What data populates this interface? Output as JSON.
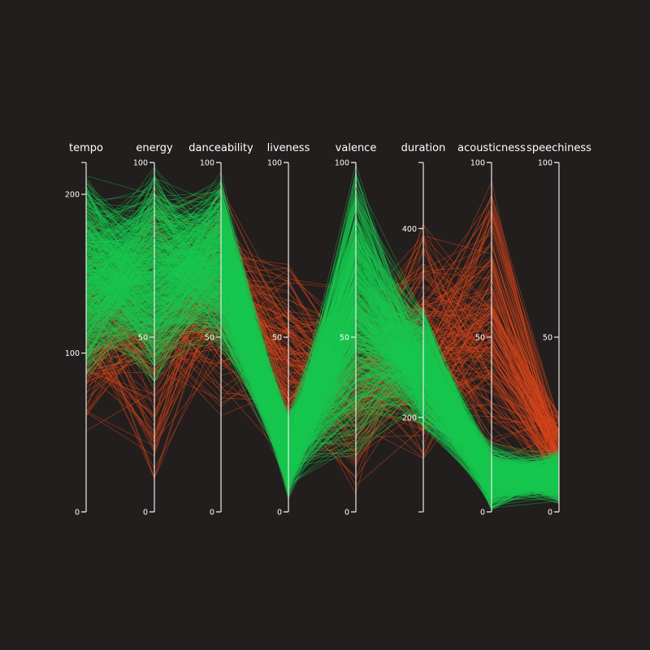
{
  "chart_data": {
    "type": "parallel-coordinates",
    "background": "#221e1d",
    "axis_color": "#e8e8e8",
    "groups": [
      {
        "color": "#19c74f",
        "count": 700
      },
      {
        "color": "#d9461c",
        "count": 170
      }
    ],
    "axes": [
      {
        "key": "tempo",
        "label": "tempo",
        "domain": [
          0,
          220
        ],
        "ticks": [
          {
            "v": 0,
            "label": "0"
          },
          {
            "v": 100,
            "label": "100"
          },
          {
            "v": 200,
            "label": "200"
          }
        ]
      },
      {
        "key": "energy",
        "label": "energy",
        "domain": [
          0,
          100
        ],
        "ticks": [
          {
            "v": 0,
            "label": "0"
          },
          {
            "v": 50,
            "label": "50"
          },
          {
            "v": 100,
            "label": "100"
          }
        ]
      },
      {
        "key": "danceability",
        "label": "danceability",
        "domain": [
          0,
          100
        ],
        "ticks": [
          {
            "v": 0,
            "label": "0"
          },
          {
            "v": 50,
            "label": "50"
          },
          {
            "v": 100,
            "label": "100"
          }
        ]
      },
      {
        "key": "liveness",
        "label": "liveness",
        "domain": [
          0,
          100
        ],
        "ticks": [
          {
            "v": 0,
            "label": "0"
          },
          {
            "v": 50,
            "label": "50"
          },
          {
            "v": 100,
            "label": "100"
          }
        ]
      },
      {
        "key": "valence",
        "label": "valence",
        "domain": [
          0,
          100
        ],
        "ticks": [
          {
            "v": 0,
            "label": "0"
          },
          {
            "v": 50,
            "label": "50"
          },
          {
            "v": 100,
            "label": "100"
          }
        ]
      },
      {
        "key": "duration",
        "label": "duration",
        "domain": [
          100,
          470
        ],
        "ticks": [
          {
            "v": 200,
            "label": "200"
          },
          {
            "v": 400,
            "label": "400"
          }
        ]
      },
      {
        "key": "acousticness",
        "label": "acousticness",
        "domain": [
          0,
          100
        ],
        "ticks": [
          {
            "v": 0,
            "label": "0"
          },
          {
            "v": 50,
            "label": "50"
          },
          {
            "v": 100,
            "label": "100"
          }
        ]
      },
      {
        "key": "speechiness",
        "label": "speechiness",
        "domain": [
          0,
          100
        ],
        "ticks": [
          {
            "v": 0,
            "label": "0"
          },
          {
            "v": 50,
            "label": "50"
          },
          {
            "v": 100,
            "label": "100"
          }
        ]
      }
    ],
    "distributions": {
      "green": {
        "tempo": [
          80,
          215
        ],
        "energy": [
          35,
          100
        ],
        "danceability": [
          45,
          98
        ],
        "liveness": [
          3,
          30
        ],
        "valence": [
          15,
          100
        ],
        "duration": [
          180,
          320
        ],
        "acousticness": [
          0,
          20
        ],
        "speechiness": [
          2,
          18
        ]
      },
      "orange": {
        "tempo": [
          45,
          200
        ],
        "energy": [
          5,
          95
        ],
        "danceability": [
          25,
          95
        ],
        "liveness": [
          5,
          75
        ],
        "valence": [
          3,
          70
        ],
        "duration": [
          140,
          420
        ],
        "acousticness": [
          10,
          100
        ],
        "speechiness": [
          2,
          30
        ]
      }
    }
  }
}
